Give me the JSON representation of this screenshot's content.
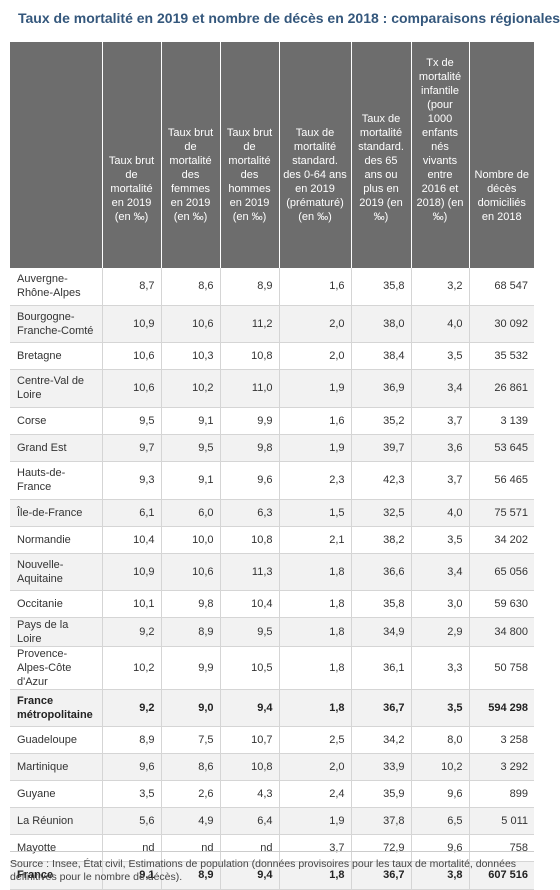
{
  "title": "Taux de mortalité en 2019 et nombre de décès en 2018 : comparaisons régionales",
  "columns": [
    "",
    "Taux brut de mortalité en 2019 (en ‰)",
    "Taux brut de mortalité des femmes en 2019 (en ‰)",
    "Taux brut de mortalité des hommes en 2019 (en ‰)",
    "Taux de mortalité standard. des 0-64 ans en 2019 (prématuré) (en ‰)",
    "Taux de mortalité standard. des 65 ans ou plus en 2019 (en ‰)",
    "Tx de mortalité infantile (pour 1000 enfants nés vivants entre 2016 et 2018) (en ‰)",
    "Nombre de décès domiciliés en 2018"
  ],
  "rows": [
    {
      "region": "Auvergne-Rhône-Alpes",
      "values": [
        "8,7",
        "8,6",
        "8,9",
        "1,6",
        "35,8",
        "3,2",
        "68 547"
      ],
      "bold": false,
      "height": 37
    },
    {
      "region": "Bourgogne-Franche-Comté",
      "values": [
        "10,9",
        "10,6",
        "11,2",
        "2,0",
        "38,0",
        "4,0",
        "30 092"
      ],
      "bold": false,
      "height": 37
    },
    {
      "region": "Bretagne",
      "values": [
        "10,6",
        "10,3",
        "10,8",
        "2,0",
        "38,4",
        "3,5",
        "35 532"
      ],
      "bold": false,
      "height": 27
    },
    {
      "region": "Centre-Val de Loire",
      "values": [
        "10,6",
        "10,2",
        "11,0",
        "1,9",
        "36,9",
        "3,4",
        "26 861"
      ],
      "bold": false,
      "height": 38
    },
    {
      "region": "Corse",
      "values": [
        "9,5",
        "9,1",
        "9,9",
        "1,6",
        "35,2",
        "3,7",
        "3 139"
      ],
      "bold": false,
      "height": 27
    },
    {
      "region": "Grand Est",
      "values": [
        "9,7",
        "9,5",
        "9,8",
        "1,9",
        "39,7",
        "3,6",
        "53 645"
      ],
      "bold": false,
      "height": 27
    },
    {
      "region": "Hauts-de-France",
      "values": [
        "9,3",
        "9,1",
        "9,6",
        "2,3",
        "42,3",
        "3,7",
        "56 465"
      ],
      "bold": false,
      "height": 38
    },
    {
      "region": "Île-de-France",
      "values": [
        "6,1",
        "6,0",
        "6,3",
        "1,5",
        "32,5",
        "4,0",
        "75 571"
      ],
      "bold": false,
      "height": 27
    },
    {
      "region": "Normandie",
      "values": [
        "10,4",
        "10,0",
        "10,8",
        "2,1",
        "38,2",
        "3,5",
        "34 202"
      ],
      "bold": false,
      "height": 27
    },
    {
      "region": "Nouvelle-Aquitaine",
      "values": [
        "10,9",
        "10,6",
        "11,3",
        "1,8",
        "36,6",
        "3,4",
        "65 056"
      ],
      "bold": false,
      "height": 37
    },
    {
      "region": "Occitanie",
      "values": [
        "10,1",
        "9,8",
        "10,4",
        "1,8",
        "35,8",
        "3,0",
        "59 630"
      ],
      "bold": false,
      "height": 27
    },
    {
      "region": "Pays de la Loire",
      "values": [
        "9,2",
        "8,9",
        "9,5",
        "1,8",
        "34,9",
        "2,9",
        "34 800"
      ],
      "bold": false,
      "height": 27
    },
    {
      "region": "Provence-Alpes-Côte d'Azur",
      "values": [
        "10,2",
        "9,9",
        "10,5",
        "1,8",
        "36,1",
        "3,3",
        "50 758"
      ],
      "bold": false,
      "height": 38
    },
    {
      "region": "France métropolitaine",
      "values": [
        "9,2",
        "9,0",
        "9,4",
        "1,8",
        "36,7",
        "3,5",
        "594 298"
      ],
      "bold": true,
      "height": 37
    },
    {
      "region": "Guadeloupe",
      "values": [
        "8,9",
        "7,5",
        "10,7",
        "2,5",
        "34,2",
        "8,0",
        "3 258"
      ],
      "bold": false,
      "height": 27
    },
    {
      "region": "Martinique",
      "values": [
        "9,6",
        "8,6",
        "10,8",
        "2,0",
        "33,9",
        "10,2",
        "3 292"
      ],
      "bold": false,
      "height": 27
    },
    {
      "region": "Guyane",
      "values": [
        "3,5",
        "2,6",
        "4,3",
        "2,4",
        "35,9",
        "9,6",
        "899"
      ],
      "bold": false,
      "height": 27
    },
    {
      "region": "La Réunion",
      "values": [
        "5,6",
        "4,9",
        "6,4",
        "1,9",
        "37,8",
        "6,5",
        "5 011"
      ],
      "bold": false,
      "height": 27
    },
    {
      "region": "Mayotte",
      "values": [
        "nd",
        "nd",
        "nd",
        "3,7",
        "72,9",
        "9,6",
        "758"
      ],
      "bold": false,
      "height": 27
    },
    {
      "region": "France",
      "values": [
        "9,1",
        "8,9",
        "9,4",
        "1,8",
        "36,7",
        "3,8",
        "607 516"
      ],
      "bold": true,
      "height": 28
    }
  ],
  "source": "Source : Insee, État civil, Estimations de population (données provisoires pour les taux de mortalité, données définitives pour le nombre de décès)."
}
